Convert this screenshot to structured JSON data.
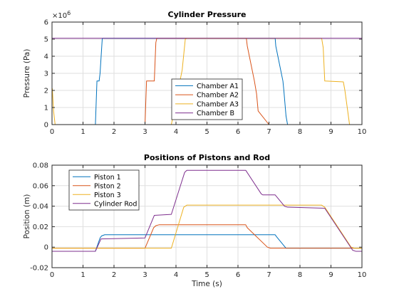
{
  "chart_data": [
    {
      "type": "line",
      "title": "Cylinder Pressure",
      "xlabel": "",
      "ylabel": "Pressure (Pa)",
      "yexponent": "×10^6",
      "xlim": [
        0,
        10
      ],
      "ylim": [
        0,
        6000000
      ],
      "xticks": [
        0,
        1,
        2,
        3,
        4,
        5,
        6,
        7,
        8,
        9,
        10
      ],
      "yticks": [
        0,
        1000000,
        2000000,
        3000000,
        4000000,
        5000000,
        6000000
      ],
      "yticklabels": [
        "0",
        "1",
        "2",
        "3",
        "4",
        "5",
        "6"
      ],
      "grid": true,
      "legend_position": "lower-center",
      "series": [
        {
          "name": "Chamber A1",
          "color": "#0072BD",
          "x": [
            0,
            1.4,
            1.45,
            1.52,
            1.55,
            1.62,
            1.63,
            7.2,
            7.22,
            7.45,
            7.48,
            7.55,
            7.6,
            10
          ],
          "y": [
            0,
            0,
            2550000,
            2550000,
            3000000,
            5000000,
            5050000,
            5050000,
            4600000,
            2550000,
            2000000,
            500000,
            0,
            0
          ]
        },
        {
          "name": "Chamber A2",
          "color": "#D95319",
          "x": [
            0,
            3.0,
            3.05,
            3.3,
            3.35,
            3.38,
            6.27,
            6.3,
            6.53,
            6.6,
            6.65,
            7.0,
            10
          ],
          "y": [
            0,
            0,
            2550000,
            2550000,
            4800000,
            5050000,
            5050000,
            4600000,
            2550000,
            1800000,
            800000,
            0,
            0
          ]
        },
        {
          "name": "Chamber A3",
          "color": "#EDB120",
          "x": [
            0,
            0.01,
            0.05,
            0.1,
            3.85,
            4.2,
            4.3,
            4.35,
            8.7,
            8.75,
            8.8,
            9.4,
            9.45,
            9.6,
            10
          ],
          "y": [
            2100000,
            2100000,
            800000,
            0,
            0,
            3200000,
            5000000,
            5050000,
            5050000,
            4500000,
            2550000,
            2500000,
            2000000,
            0,
            0
          ]
        },
        {
          "name": "Chamber B",
          "color": "#7E2F8E",
          "x": [
            0,
            10
          ],
          "y": [
            5050000,
            5050000
          ]
        }
      ]
    },
    {
      "type": "line",
      "title": "Positions of Pistons and Rod",
      "xlabel": "Time (s)",
      "ylabel": "Position (m)",
      "xlim": [
        0,
        10
      ],
      "ylim": [
        -0.02,
        0.08
      ],
      "xticks": [
        0,
        1,
        2,
        3,
        4,
        5,
        6,
        7,
        8,
        9,
        10
      ],
      "yticks": [
        -0.02,
        0,
        0.02,
        0.04,
        0.06,
        0.08
      ],
      "yticklabels": [
        "-0.02",
        "0",
        "0.02",
        "0.04",
        "0.06",
        "0.08"
      ],
      "grid": true,
      "legend_position": "upper-left",
      "series": [
        {
          "name": "Piston 1",
          "color": "#0072BD",
          "x": [
            0,
            1.4,
            1.55,
            1.6,
            1.7,
            7.2,
            7.25,
            7.55,
            10
          ],
          "y": [
            -0.004,
            -0.004,
            0.009,
            0.011,
            0.0121,
            0.0121,
            0.01,
            -0.001,
            -0.001
          ]
        },
        {
          "name": "Piston 2",
          "color": "#D95319",
          "x": [
            0,
            3.0,
            3.28,
            3.35,
            3.45,
            6.25,
            6.3,
            6.95,
            7.05,
            10
          ],
          "y": [
            -0.001,
            -0.001,
            0.019,
            0.021,
            0.0218,
            0.0218,
            0.019,
            0.0,
            -0.001,
            -0.001
          ]
        },
        {
          "name": "Piston 3",
          "color": "#EDB120",
          "x": [
            0,
            3.85,
            4.25,
            4.35,
            8.7,
            8.8,
            9.65,
            9.75,
            10
          ],
          "y": [
            -0.001,
            -0.001,
            0.039,
            0.041,
            0.041,
            0.039,
            0.0,
            -0.001,
            -0.001
          ]
        },
        {
          "name": "Cylinder Rod",
          "color": "#7E2F8E",
          "x": [
            0,
            1.4,
            1.58,
            3.0,
            3.3,
            3.85,
            4.28,
            4.35,
            6.25,
            6.75,
            6.8,
            7.2,
            7.5,
            7.6,
            8.8,
            9.7,
            9.8,
            10
          ],
          "y": [
            -0.004,
            -0.004,
            0.008,
            0.009,
            0.031,
            0.032,
            0.073,
            0.075,
            0.075,
            0.052,
            0.051,
            0.051,
            0.04,
            0.039,
            0.038,
            -0.003,
            -0.004,
            -0.004
          ]
        }
      ]
    }
  ]
}
